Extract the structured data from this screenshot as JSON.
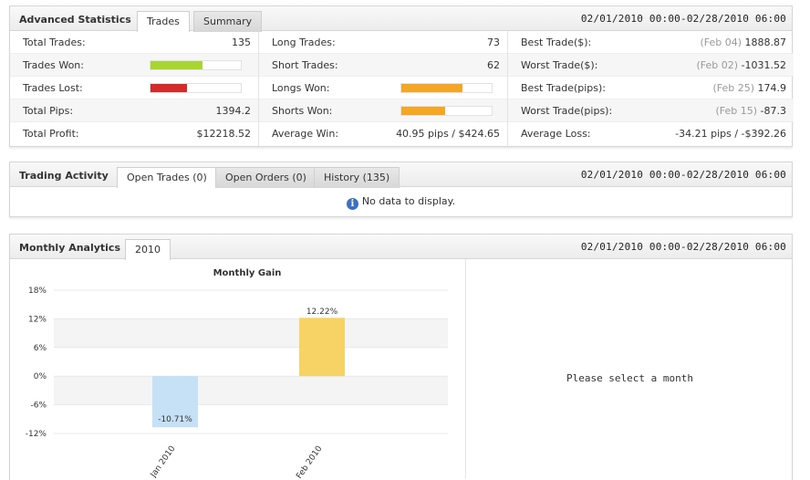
{
  "advanced": {
    "title": "Advanced Statistics",
    "tabs": [
      "Trades",
      "Summary"
    ],
    "date_range": "02/01/2010 00:00-02/28/2010 06:00",
    "col1": [
      {
        "label": "Total Trades:",
        "value": "135"
      },
      {
        "label": "Trades Won:",
        "bar_fraction": 0.58,
        "bar_color": "#a8d62f"
      },
      {
        "label": "Trades Lost:",
        "bar_fraction": 0.4,
        "bar_color": "#d62a2a"
      },
      {
        "label": "Total Pips:",
        "value": "1394.2"
      },
      {
        "label": "Total Profit:",
        "value": "$12218.52"
      }
    ],
    "col2": [
      {
        "label": "Long Trades:",
        "value": "73"
      },
      {
        "label": "Short Trades:",
        "value": "62"
      },
      {
        "label": "Longs Won:",
        "bar_fraction": 0.68,
        "bar_color": "#f5a623"
      },
      {
        "label": "Shorts Won:",
        "bar_fraction": 0.48,
        "bar_color": "#f5a623"
      },
      {
        "label": "Average Win:",
        "value": "40.95 pips / $424.65"
      }
    ],
    "col3": [
      {
        "label": "Best Trade($):",
        "date": "(Feb 04)",
        "value": "1888.87"
      },
      {
        "label": "Worst Trade($):",
        "date": "(Feb 02)",
        "value": "-1031.52"
      },
      {
        "label": "Best Trade(pips):",
        "date": "(Feb 25)",
        "value": "174.9"
      },
      {
        "label": "Worst Trade(pips):",
        "date": "(Feb 15)",
        "value": "-87.3"
      },
      {
        "label": "Average Loss:",
        "date": "",
        "value": "-34.21 pips / -$392.26"
      }
    ]
  },
  "activity": {
    "title": "Trading Activity",
    "tabs": [
      "Open Trades (0)",
      "Open Orders (0)",
      "History (135)"
    ],
    "date_range": "02/01/2010 00:00-02/28/2010 06:00",
    "info_icon": "info-icon",
    "info_glyph": "i",
    "no_data": "No data to display."
  },
  "monthly": {
    "title": "Monthly Analytics",
    "tabs": [
      "2010"
    ],
    "date_range": "02/01/2010 00:00-02/28/2010 06:00",
    "select_message": "Please select a month"
  },
  "chart_data": {
    "type": "bar",
    "title": "Monthly Gain",
    "categories": [
      "Jan 2010",
      "Feb 2010"
    ],
    "values": [
      -10.71,
      12.22
    ],
    "value_labels": [
      "-10.71%",
      "12.22%"
    ],
    "colors": [
      "#c6e0f5",
      "#f7d366"
    ],
    "ylim": [
      -12,
      18
    ],
    "yticks": [
      18,
      12,
      6,
      0,
      -6,
      -12
    ],
    "ytick_labels": [
      "18%",
      "12%",
      "6%",
      "0%",
      "-6%",
      "-12%"
    ],
    "xlabel": "",
    "ylabel": ""
  }
}
